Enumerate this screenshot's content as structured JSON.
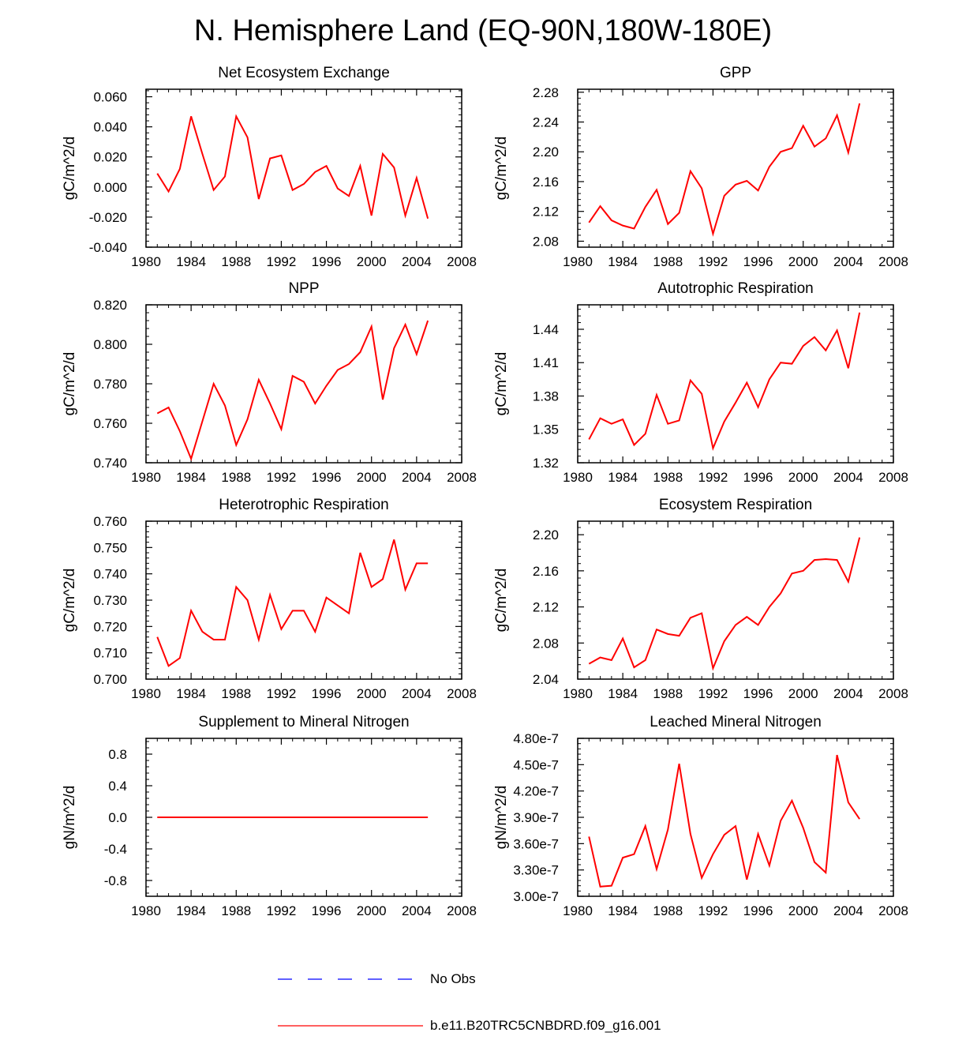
{
  "title": "N. Hemisphere Land (EQ-90N,180W-180E)",
  "colors": {
    "model": "#ff0000",
    "obs": "#0000ff",
    "axis": "#000000"
  },
  "legend": [
    {
      "label": "No Obs",
      "style": "dashed",
      "color": "#0000ff"
    },
    {
      "label": "b.e11.B20TRC5CNBDRD.f09_g16.001",
      "style": "solid",
      "color": "#ff0000"
    }
  ],
  "chart_data": [
    {
      "type": "line",
      "title": "Net Ecosystem Exchange",
      "ylabel": "gC/m^2/d",
      "xlabel": "",
      "xlim": [
        1980,
        2008
      ],
      "xticks": [
        1980,
        1984,
        1988,
        1992,
        1996,
        2000,
        2004,
        2008
      ],
      "xtick_labels": [
        "1980",
        "1984",
        "1988",
        "1992",
        "1996",
        "2000",
        "2004",
        "2008"
      ],
      "ylim": [
        -0.04,
        0.065
      ],
      "yticks": [
        -0.04,
        -0.02,
        0.0,
        0.02,
        0.04,
        0.06
      ],
      "ytick_labels": [
        "-0.040",
        "-0.020",
        "0.000",
        "0.020",
        "0.040",
        "0.060"
      ],
      "x": [
        1981,
        1982,
        1983,
        1984,
        1985,
        1986,
        1987,
        1988,
        1989,
        1990,
        1991,
        1992,
        1993,
        1994,
        1995,
        1996,
        1997,
        1998,
        1999,
        2000,
        2001,
        2002,
        2003,
        2004,
        2005
      ],
      "values": [
        0.009,
        -0.003,
        0.012,
        0.047,
        0.022,
        -0.002,
        0.007,
        0.047,
        0.033,
        -0.008,
        0.019,
        0.021,
        -0.002,
        0.002,
        0.01,
        0.014,
        -0.001,
        -0.006,
        0.014,
        -0.019,
        0.022,
        0.013,
        -0.019,
        0.006,
        -0.021
      ]
    },
    {
      "type": "line",
      "title": "GPP",
      "ylabel": "gC/m^2/d",
      "xlabel": "",
      "xlim": [
        1980,
        2008
      ],
      "xticks": [
        1980,
        1984,
        1988,
        1992,
        1996,
        2000,
        2004,
        2008
      ],
      "xtick_labels": [
        "1980",
        "1984",
        "1988",
        "1992",
        "1996",
        "2000",
        "2004",
        "2008"
      ],
      "ylim": [
        2.072,
        2.284
      ],
      "yticks": [
        2.08,
        2.12,
        2.16,
        2.2,
        2.24,
        2.28
      ],
      "ytick_labels": [
        "2.08",
        "2.12",
        "2.16",
        "2.20",
        "2.24",
        "2.28"
      ],
      "x": [
        1981,
        1982,
        1983,
        1984,
        1985,
        1986,
        1987,
        1988,
        1989,
        1990,
        1991,
        1992,
        1993,
        1994,
        1995,
        1996,
        1997,
        1998,
        1999,
        2000,
        2001,
        2002,
        2003,
        2004,
        2005
      ],
      "values": [
        2.105,
        2.127,
        2.108,
        2.101,
        2.097,
        2.126,
        2.149,
        2.103,
        2.118,
        2.174,
        2.151,
        2.09,
        2.141,
        2.156,
        2.161,
        2.148,
        2.18,
        2.2,
        2.205,
        2.235,
        2.207,
        2.218,
        2.249,
        2.199,
        2.265
      ]
    },
    {
      "type": "line",
      "title": "NPP",
      "ylabel": "gC/m^2/d",
      "xlabel": "",
      "xlim": [
        1980,
        2008
      ],
      "xticks": [
        1980,
        1984,
        1988,
        1992,
        1996,
        2000,
        2004,
        2008
      ],
      "xtick_labels": [
        "1980",
        "1984",
        "1988",
        "1992",
        "1996",
        "2000",
        "2004",
        "2008"
      ],
      "ylim": [
        0.74,
        0.82
      ],
      "yticks": [
        0.74,
        0.76,
        0.78,
        0.8,
        0.82
      ],
      "ytick_labels": [
        "0.740",
        "0.760",
        "0.780",
        "0.800",
        "0.820"
      ],
      "x": [
        1981,
        1982,
        1983,
        1984,
        1985,
        1986,
        1987,
        1988,
        1989,
        1990,
        1991,
        1992,
        1993,
        1994,
        1995,
        1996,
        1997,
        1998,
        1999,
        2000,
        2001,
        2002,
        2003,
        2004,
        2005
      ],
      "values": [
        0.765,
        0.768,
        0.756,
        0.742,
        0.761,
        0.78,
        0.769,
        0.749,
        0.762,
        0.782,
        0.77,
        0.757,
        0.784,
        0.781,
        0.77,
        0.779,
        0.787,
        0.79,
        0.796,
        0.809,
        0.772,
        0.798,
        0.81,
        0.795,
        0.812
      ]
    },
    {
      "type": "line",
      "title": "Autotrophic Respiration",
      "ylabel": "gC/m^2/d",
      "xlabel": "",
      "xlim": [
        1980,
        2008
      ],
      "xticks": [
        1980,
        1984,
        1988,
        1992,
        1996,
        2000,
        2004,
        2008
      ],
      "xtick_labels": [
        "1980",
        "1984",
        "1988",
        "1992",
        "1996",
        "2000",
        "2004",
        "2008"
      ],
      "ylim": [
        1.32,
        1.462
      ],
      "yticks": [
        1.32,
        1.35,
        1.38,
        1.41,
        1.44
      ],
      "ytick_labels": [
        "1.32",
        "1.35",
        "1.38",
        "1.41",
        "1.44"
      ],
      "x": [
        1981,
        1982,
        1983,
        1984,
        1985,
        1986,
        1987,
        1988,
        1989,
        1990,
        1991,
        1992,
        1993,
        1994,
        1995,
        1996,
        1997,
        1998,
        1999,
        2000,
        2001,
        2002,
        2003,
        2004,
        2005
      ],
      "values": [
        1.341,
        1.36,
        1.355,
        1.359,
        1.336,
        1.346,
        1.381,
        1.355,
        1.358,
        1.394,
        1.382,
        1.333,
        1.357,
        1.374,
        1.392,
        1.37,
        1.395,
        1.41,
        1.409,
        1.425,
        1.433,
        1.421,
        1.439,
        1.405,
        1.455
      ]
    },
    {
      "type": "line",
      "title": "Heterotrophic Respiration",
      "ylabel": "gC/m^2/d",
      "xlabel": "",
      "xlim": [
        1980,
        2008
      ],
      "xticks": [
        1980,
        1984,
        1988,
        1992,
        1996,
        2000,
        2004,
        2008
      ],
      "xtick_labels": [
        "1980",
        "1984",
        "1988",
        "1992",
        "1996",
        "2000",
        "2004",
        "2008"
      ],
      "ylim": [
        0.7,
        0.76
      ],
      "yticks": [
        0.7,
        0.71,
        0.72,
        0.73,
        0.74,
        0.75,
        0.76
      ],
      "ytick_labels": [
        "0.700",
        "0.710",
        "0.720",
        "0.730",
        "0.740",
        "0.750",
        "0.760"
      ],
      "x": [
        1981,
        1982,
        1983,
        1984,
        1985,
        1986,
        1987,
        1988,
        1989,
        1990,
        1991,
        1992,
        1993,
        1994,
        1995,
        1996,
        1997,
        1998,
        1999,
        2000,
        2001,
        2002,
        2003,
        2004,
        2005
      ],
      "values": [
        0.716,
        0.705,
        0.708,
        0.726,
        0.718,
        0.715,
        0.715,
        0.735,
        0.73,
        0.715,
        0.732,
        0.719,
        0.726,
        0.726,
        0.718,
        0.731,
        0.728,
        0.725,
        0.748,
        0.735,
        0.738,
        0.753,
        0.734,
        0.744,
        0.744
      ]
    },
    {
      "type": "line",
      "title": "Ecosystem Respiration",
      "ylabel": "gC/m^2/d",
      "xlabel": "",
      "xlim": [
        1980,
        2008
      ],
      "xticks": [
        1980,
        1984,
        1988,
        1992,
        1996,
        2000,
        2004,
        2008
      ],
      "xtick_labels": [
        "1980",
        "1984",
        "1988",
        "1992",
        "1996",
        "2000",
        "2004",
        "2008"
      ],
      "ylim": [
        2.04,
        2.215
      ],
      "yticks": [
        2.04,
        2.08,
        2.12,
        2.16,
        2.2
      ],
      "ytick_labels": [
        "2.04",
        "2.08",
        "2.12",
        "2.16",
        "2.20"
      ],
      "x": [
        1981,
        1982,
        1983,
        1984,
        1985,
        1986,
        1987,
        1988,
        1989,
        1990,
        1991,
        1992,
        1993,
        1994,
        1995,
        1996,
        1997,
        1998,
        1999,
        2000,
        2001,
        2002,
        2003,
        2004,
        2005
      ],
      "values": [
        2.057,
        2.064,
        2.061,
        2.085,
        2.053,
        2.061,
        2.095,
        2.09,
        2.088,
        2.108,
        2.113,
        2.052,
        2.082,
        2.1,
        2.109,
        2.1,
        2.12,
        2.135,
        2.157,
        2.16,
        2.172,
        2.173,
        2.172,
        2.148,
        2.197
      ]
    },
    {
      "type": "line",
      "title": "Supplement to Mineral Nitrogen",
      "ylabel": "gN/m^2/d",
      "xlabel": "",
      "xlim": [
        1980,
        2008
      ],
      "xticks": [
        1980,
        1984,
        1988,
        1992,
        1996,
        2000,
        2004,
        2008
      ],
      "xtick_labels": [
        "1980",
        "1984",
        "1988",
        "1992",
        "1996",
        "2000",
        "2004",
        "2008"
      ],
      "ylim": [
        -1.0,
        1.0
      ],
      "yticks": [
        -0.8,
        -0.4,
        0.0,
        0.4,
        0.8
      ],
      "ytick_labels": [
        "-0.8",
        "-0.4",
        "0.0",
        "0.4",
        "0.8"
      ],
      "x": [
        1981,
        1982,
        1983,
        1984,
        1985,
        1986,
        1987,
        1988,
        1989,
        1990,
        1991,
        1992,
        1993,
        1994,
        1995,
        1996,
        1997,
        1998,
        1999,
        2000,
        2001,
        2002,
        2003,
        2004,
        2005
      ],
      "values": [
        0,
        0,
        0,
        0,
        0,
        0,
        0,
        0,
        0,
        0,
        0,
        0,
        0,
        0,
        0,
        0,
        0,
        0,
        0,
        0,
        0,
        0,
        0,
        0,
        0
      ]
    },
    {
      "type": "line",
      "title": "Leached Mineral Nitrogen",
      "ylabel": "gN/m^2/d",
      "xlabel": "",
      "xlim": [
        1980,
        2008
      ],
      "xticks": [
        1980,
        1984,
        1988,
        1992,
        1996,
        2000,
        2004,
        2008
      ],
      "xtick_labels": [
        "1980",
        "1984",
        "1988",
        "1992",
        "1996",
        "2000",
        "2004",
        "2008"
      ],
      "ylim": [
        3e-07,
        4.8e-07
      ],
      "yticks": [
        3e-07,
        3.3e-07,
        3.6e-07,
        3.9e-07,
        4.2e-07,
        4.5e-07,
        4.8e-07
      ],
      "ytick_labels": [
        "3.00e-7",
        "3.30e-7",
        "3.60e-7",
        "3.90e-7",
        "4.20e-7",
        "4.50e-7",
        "4.80e-7"
      ],
      "x": [
        1981,
        1982,
        1983,
        1984,
        1985,
        1986,
        1987,
        1988,
        1989,
        1990,
        1991,
        1992,
        1993,
        1994,
        1995,
        1996,
        1997,
        1998,
        1999,
        2000,
        2001,
        2002,
        2003,
        2004,
        2005
      ],
      "values": [
        3.68e-07,
        3.11e-07,
        3.12e-07,
        3.44e-07,
        3.48e-07,
        3.8e-07,
        3.31e-07,
        3.76e-07,
        4.51e-07,
        3.71e-07,
        3.21e-07,
        3.48e-07,
        3.7e-07,
        3.8e-07,
        3.19e-07,
        3.71e-07,
        3.35e-07,
        3.86e-07,
        4.09e-07,
        3.78e-07,
        3.39e-07,
        3.27e-07,
        4.61e-07,
        4.07e-07,
        3.88e-07
      ]
    }
  ]
}
